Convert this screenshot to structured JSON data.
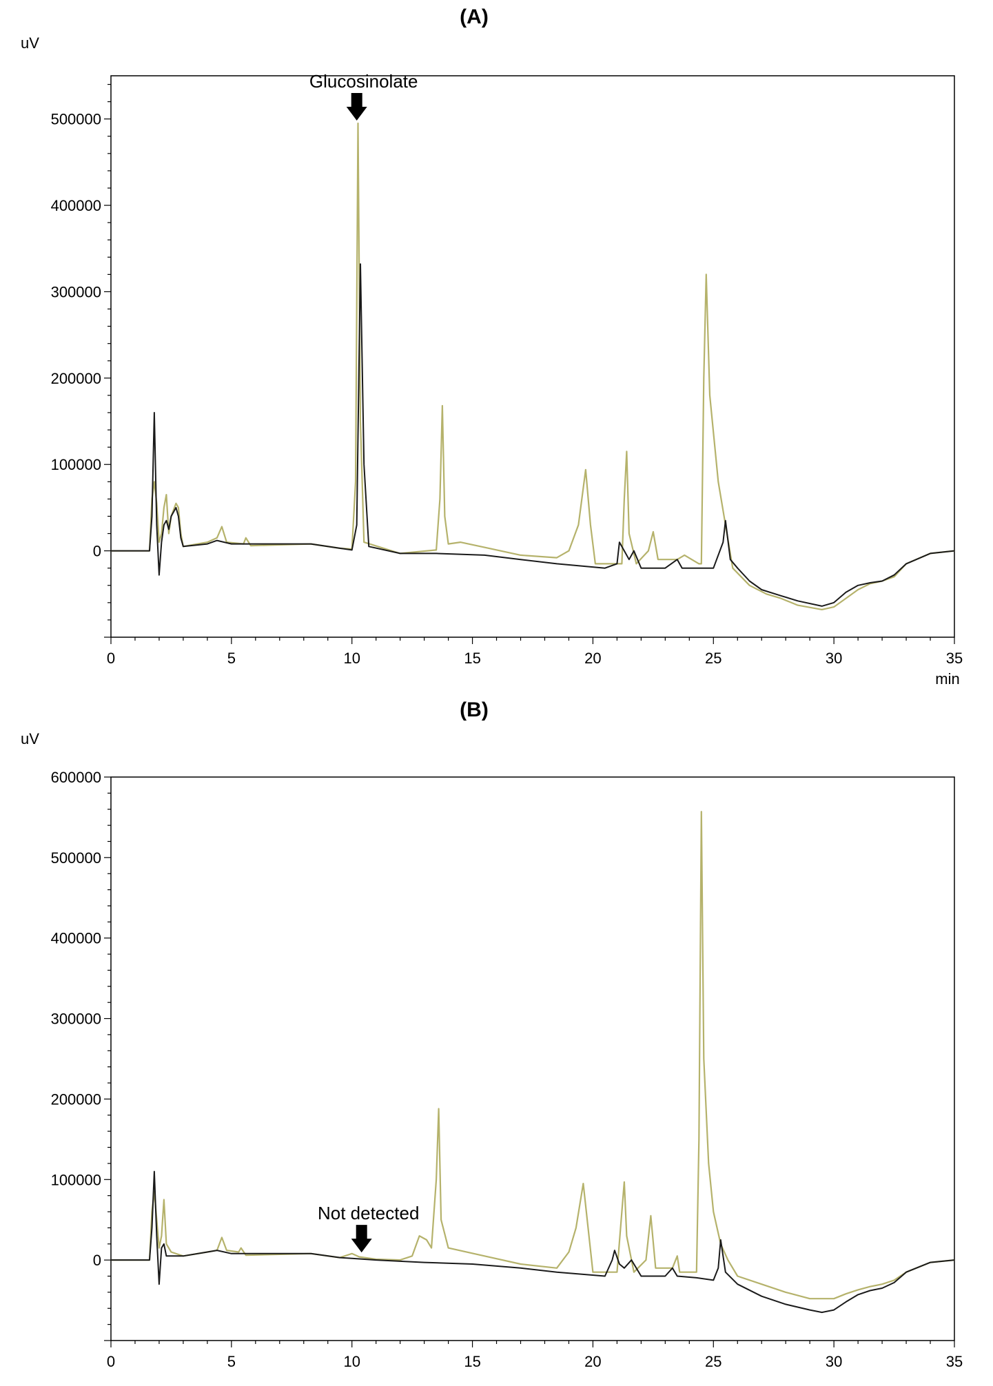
{
  "colors": {
    "series_dark": "#1a1a1a",
    "series_olive": "#b5b26b",
    "axis": "#000000",
    "arrow": "#000000"
  },
  "chart_data": [
    {
      "type": "line",
      "title": "(A)",
      "ylabel": "uV",
      "xlabel": "min",
      "xlim": [
        0,
        35
      ],
      "ylim": [
        -100000,
        550000
      ],
      "x_ticks": [
        0,
        5,
        10,
        15,
        20,
        25,
        30,
        35
      ],
      "y_ticks": [
        0,
        100000,
        200000,
        300000,
        400000,
        500000
      ],
      "grid": false,
      "annotation": {
        "text": "Glucosinolate",
        "x": 10.2,
        "y": 495000
      },
      "series": [
        {
          "color": "#b5b26b",
          "points": [
            [
              0,
              0
            ],
            [
              1.6,
              0
            ],
            [
              1.7,
              60000
            ],
            [
              1.8,
              80000
            ],
            [
              1.9,
              55000
            ],
            [
              2.0,
              10000
            ],
            [
              2.1,
              20000
            ],
            [
              2.2,
              50000
            ],
            [
              2.3,
              65000
            ],
            [
              2.4,
              20000
            ],
            [
              2.5,
              40000
            ],
            [
              2.7,
              55000
            ],
            [
              2.8,
              50000
            ],
            [
              2.9,
              20000
            ],
            [
              3.0,
              5000
            ],
            [
              4.0,
              10000
            ],
            [
              4.4,
              15000
            ],
            [
              4.6,
              28000
            ],
            [
              4.8,
              10000
            ],
            [
              5.5,
              8000
            ],
            [
              5.6,
              15000
            ],
            [
              5.8,
              6000
            ],
            [
              8.3,
              8000
            ],
            [
              9.5,
              3000
            ],
            [
              10.0,
              2000
            ],
            [
              10.15,
              80000
            ],
            [
              10.25,
              495000
            ],
            [
              10.35,
              150000
            ],
            [
              10.5,
              10000
            ],
            [
              12.0,
              -3000
            ],
            [
              13.5,
              1000
            ],
            [
              13.65,
              60000
            ],
            [
              13.75,
              168000
            ],
            [
              13.85,
              40000
            ],
            [
              14.0,
              8000
            ],
            [
              14.5,
              10000
            ],
            [
              15.5,
              4000
            ],
            [
              17.0,
              -5000
            ],
            [
              18.5,
              -8000
            ],
            [
              19.0,
              0
            ],
            [
              19.4,
              30000
            ],
            [
              19.7,
              94000
            ],
            [
              19.9,
              30000
            ],
            [
              20.1,
              -15000
            ],
            [
              21.2,
              -15000
            ],
            [
              21.3,
              60000
            ],
            [
              21.4,
              115000
            ],
            [
              21.5,
              20000
            ],
            [
              21.8,
              -15000
            ],
            [
              22.3,
              0
            ],
            [
              22.5,
              22000
            ],
            [
              22.7,
              -10000
            ],
            [
              23.5,
              -10000
            ],
            [
              23.8,
              -5000
            ],
            [
              24.4,
              -15000
            ],
            [
              24.5,
              -15000
            ],
            [
              24.6,
              200000
            ],
            [
              24.7,
              320000
            ],
            [
              24.85,
              180000
            ],
            [
              25.2,
              80000
            ],
            [
              25.5,
              30000
            ],
            [
              25.8,
              -20000
            ],
            [
              26.5,
              -40000
            ],
            [
              27.2,
              -50000
            ],
            [
              27.8,
              -55000
            ],
            [
              28.5,
              -63000
            ],
            [
              29.5,
              -68000
            ],
            [
              30.0,
              -65000
            ],
            [
              30.5,
              -55000
            ],
            [
              31.0,
              -45000
            ],
            [
              31.5,
              -38000
            ],
            [
              32.0,
              -35000
            ],
            [
              32.5,
              -30000
            ],
            [
              33.0,
              -15000
            ],
            [
              34.0,
              -3000
            ],
            [
              35.0,
              0
            ]
          ]
        },
        {
          "color": "#1a1a1a",
          "points": [
            [
              0,
              0
            ],
            [
              1.6,
              0
            ],
            [
              1.7,
              40000
            ],
            [
              1.8,
              160000
            ],
            [
              1.9,
              30000
            ],
            [
              2.0,
              -28000
            ],
            [
              2.1,
              10000
            ],
            [
              2.2,
              30000
            ],
            [
              2.3,
              35000
            ],
            [
              2.4,
              25000
            ],
            [
              2.5,
              40000
            ],
            [
              2.7,
              50000
            ],
            [
              2.8,
              40000
            ],
            [
              2.9,
              15000
            ],
            [
              3.0,
              5000
            ],
            [
              4.0,
              8000
            ],
            [
              4.4,
              12000
            ],
            [
              5.0,
              8000
            ],
            [
              8.3,
              8000
            ],
            [
              9.5,
              3000
            ],
            [
              10.0,
              1000
            ],
            [
              10.2,
              30000
            ],
            [
              10.35,
              332000
            ],
            [
              10.5,
              100000
            ],
            [
              10.7,
              5000
            ],
            [
              12.0,
              -3000
            ],
            [
              13.5,
              -3000
            ],
            [
              15.5,
              -5000
            ],
            [
              17.0,
              -10000
            ],
            [
              18.5,
              -15000
            ],
            [
              20.5,
              -20000
            ],
            [
              21.0,
              -15000
            ],
            [
              21.1,
              10000
            ],
            [
              21.3,
              0
            ],
            [
              21.5,
              -10000
            ],
            [
              21.7,
              0
            ],
            [
              22.0,
              -20000
            ],
            [
              23.0,
              -20000
            ],
            [
              23.5,
              -10000
            ],
            [
              23.7,
              -20000
            ],
            [
              24.3,
              -20000
            ],
            [
              25.0,
              -20000
            ],
            [
              25.4,
              10000
            ],
            [
              25.5,
              35000
            ],
            [
              25.7,
              -10000
            ],
            [
              26.0,
              -20000
            ],
            [
              26.5,
              -35000
            ],
            [
              27.0,
              -45000
            ],
            [
              27.8,
              -52000
            ],
            [
              28.5,
              -58000
            ],
            [
              29.5,
              -64000
            ],
            [
              30.0,
              -60000
            ],
            [
              30.5,
              -48000
            ],
            [
              31.0,
              -40000
            ],
            [
              31.5,
              -37000
            ],
            [
              32.0,
              -35000
            ],
            [
              32.5,
              -28000
            ],
            [
              33.0,
              -15000
            ],
            [
              34.0,
              -3000
            ],
            [
              35.0,
              0
            ]
          ]
        }
      ]
    },
    {
      "type": "line",
      "title": "(B)",
      "ylabel": "uV",
      "xlabel": "",
      "xlim": [
        0,
        35
      ],
      "ylim": [
        -100000,
        600000
      ],
      "x_ticks": [
        0,
        5,
        10,
        15,
        20,
        25,
        30,
        35
      ],
      "y_ticks": [
        0,
        100000,
        200000,
        300000,
        400000,
        500000,
        600000
      ],
      "grid": false,
      "annotation": {
        "text": "Not detected",
        "x": 10.4,
        "y": 6000
      },
      "series": [
        {
          "color": "#b5b26b",
          "points": [
            [
              0,
              0
            ],
            [
              1.6,
              0
            ],
            [
              1.7,
              60000
            ],
            [
              1.8,
              85000
            ],
            [
              1.9,
              50000
            ],
            [
              2.0,
              15000
            ],
            [
              2.1,
              30000
            ],
            [
              2.2,
              75000
            ],
            [
              2.3,
              20000
            ],
            [
              2.5,
              10000
            ],
            [
              3.0,
              5000
            ],
            [
              4.0,
              10000
            ],
            [
              4.4,
              12000
            ],
            [
              4.6,
              28000
            ],
            [
              4.8,
              12000
            ],
            [
              5.3,
              10000
            ],
            [
              5.4,
              15000
            ],
            [
              5.6,
              6000
            ],
            [
              8.3,
              8000
            ],
            [
              9.5,
              3000
            ],
            [
              10.0,
              8000
            ],
            [
              10.3,
              4000
            ],
            [
              11.0,
              1000
            ],
            [
              12.0,
              0
            ],
            [
              12.5,
              5000
            ],
            [
              12.8,
              30000
            ],
            [
              13.1,
              25000
            ],
            [
              13.3,
              15000
            ],
            [
              13.5,
              100000
            ],
            [
              13.6,
              188000
            ],
            [
              13.7,
              50000
            ],
            [
              14.0,
              15000
            ],
            [
              15.5,
              5000
            ],
            [
              17.0,
              -5000
            ],
            [
              18.5,
              -10000
            ],
            [
              19.0,
              10000
            ],
            [
              19.3,
              40000
            ],
            [
              19.6,
              95000
            ],
            [
              19.8,
              40000
            ],
            [
              20.0,
              -15000
            ],
            [
              21.0,
              -15000
            ],
            [
              21.2,
              60000
            ],
            [
              21.3,
              97000
            ],
            [
              21.4,
              30000
            ],
            [
              21.7,
              -15000
            ],
            [
              22.2,
              0
            ],
            [
              22.4,
              55000
            ],
            [
              22.6,
              -10000
            ],
            [
              23.3,
              -10000
            ],
            [
              23.5,
              5000
            ],
            [
              23.6,
              -15000
            ],
            [
              24.3,
              -15000
            ],
            [
              24.4,
              150000
            ],
            [
              24.5,
              557000
            ],
            [
              24.6,
              250000
            ],
            [
              24.8,
              120000
            ],
            [
              25.0,
              60000
            ],
            [
              25.3,
              20000
            ],
            [
              25.6,
              0
            ],
            [
              26.0,
              -20000
            ],
            [
              27.0,
              -30000
            ],
            [
              28.0,
              -40000
            ],
            [
              29.0,
              -48000
            ],
            [
              30.0,
              -48000
            ],
            [
              30.5,
              -42000
            ],
            [
              31.0,
              -37000
            ],
            [
              31.5,
              -33000
            ],
            [
              32.0,
              -30000
            ],
            [
              32.5,
              -25000
            ],
            [
              33.0,
              -15000
            ],
            [
              34.0,
              -3000
            ],
            [
              35.0,
              0
            ]
          ]
        },
        {
          "color": "#1a1a1a",
          "points": [
            [
              0,
              0
            ],
            [
              1.6,
              0
            ],
            [
              1.7,
              40000
            ],
            [
              1.8,
              110000
            ],
            [
              1.9,
              30000
            ],
            [
              2.0,
              -30000
            ],
            [
              2.1,
              15000
            ],
            [
              2.2,
              20000
            ],
            [
              2.3,
              5000
            ],
            [
              2.5,
              5000
            ],
            [
              3.0,
              5000
            ],
            [
              4.0,
              10000
            ],
            [
              4.4,
              12000
            ],
            [
              5.0,
              8000
            ],
            [
              8.3,
              8000
            ],
            [
              9.5,
              3000
            ],
            [
              10.0,
              2000
            ],
            [
              11.0,
              0
            ],
            [
              13.0,
              -3000
            ],
            [
              15.0,
              -5000
            ],
            [
              17.0,
              -10000
            ],
            [
              18.5,
              -15000
            ],
            [
              20.5,
              -20000
            ],
            [
              20.8,
              0
            ],
            [
              20.9,
              12000
            ],
            [
              21.1,
              -5000
            ],
            [
              21.3,
              -10000
            ],
            [
              21.6,
              0
            ],
            [
              22.0,
              -20000
            ],
            [
              23.0,
              -20000
            ],
            [
              23.3,
              -10000
            ],
            [
              23.5,
              -20000
            ],
            [
              24.3,
              -22000
            ],
            [
              25.0,
              -25000
            ],
            [
              25.2,
              -10000
            ],
            [
              25.3,
              25000
            ],
            [
              25.5,
              -15000
            ],
            [
              26.0,
              -30000
            ],
            [
              27.0,
              -45000
            ],
            [
              28.0,
              -55000
            ],
            [
              29.0,
              -62000
            ],
            [
              29.5,
              -65000
            ],
            [
              30.0,
              -62000
            ],
            [
              30.5,
              -52000
            ],
            [
              31.0,
              -43000
            ],
            [
              31.5,
              -38000
            ],
            [
              32.0,
              -35000
            ],
            [
              32.5,
              -28000
            ],
            [
              33.0,
              -15000
            ],
            [
              34.0,
              -3000
            ],
            [
              35.0,
              0
            ]
          ]
        }
      ]
    }
  ]
}
